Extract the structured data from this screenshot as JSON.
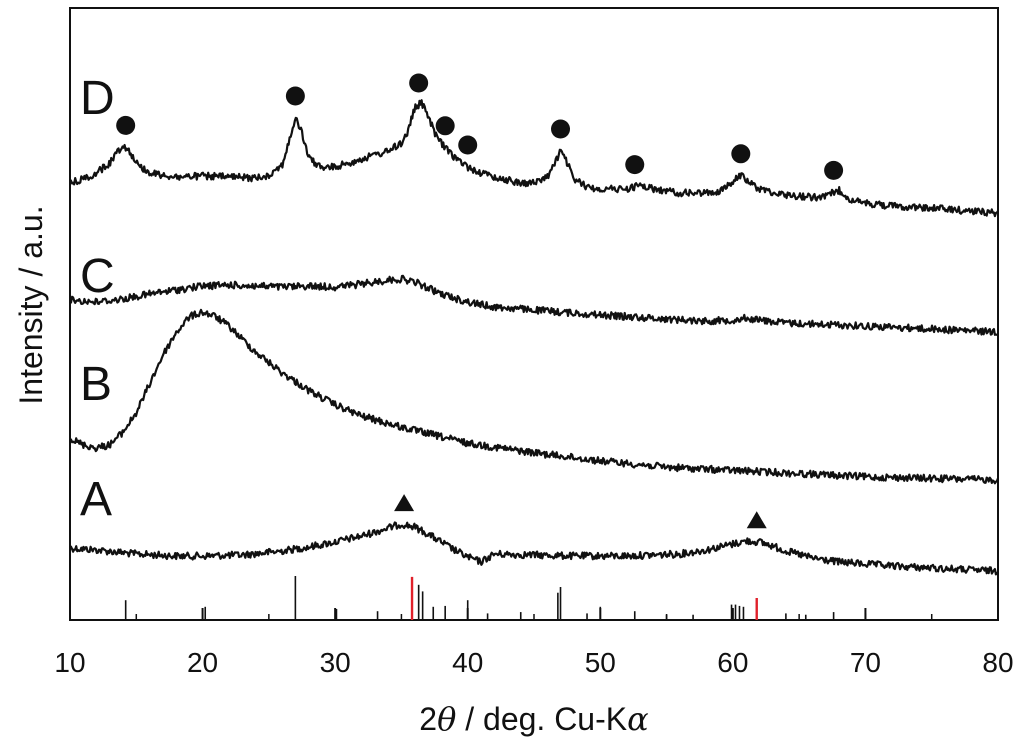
{
  "chart_data": {
    "type": "line",
    "title": "",
    "xlabel_prefix": "2",
    "xlabel_theta": "θ",
    "xlabel_mid": " / deg. Cu-K",
    "xlabel_alpha": "α",
    "ylabel": "Intensity / a.u.",
    "xlim": [
      10,
      80
    ],
    "xticks": [
      10,
      20,
      30,
      40,
      50,
      60,
      70,
      80
    ],
    "yticks_shown": false,
    "grid": false,
    "colors": {
      "trace": "#111111",
      "ref_black": "#111111",
      "ref_red": "#e0202a"
    },
    "series": [
      {
        "name": "A",
        "x": [
          10,
          12,
          15,
          18,
          20,
          23,
          26,
          28,
          30,
          32,
          34,
          35,
          36,
          37,
          38,
          39,
          40,
          41,
          42,
          45,
          48,
          52,
          56,
          58,
          60,
          61,
          62,
          63,
          64,
          66,
          68,
          70,
          72,
          75,
          78,
          80
        ],
        "y": [
          0.24,
          0.22,
          0.18,
          0.16,
          0.16,
          0.17,
          0.21,
          0.25,
          0.3,
          0.36,
          0.44,
          0.48,
          0.45,
          0.38,
          0.3,
          0.22,
          0.15,
          0.1,
          0.18,
          0.17,
          0.16,
          0.16,
          0.18,
          0.22,
          0.28,
          0.31,
          0.3,
          0.26,
          0.21,
          0.14,
          0.1,
          0.08,
          0.06,
          0.04,
          0.02,
          0.01
        ],
        "markers": [
          {
            "x": 35.2,
            "symbol": "triangle"
          },
          {
            "x": 61.8,
            "symbol": "triangle"
          }
        ]
      },
      {
        "name": "B",
        "x": [
          10,
          11,
          12,
          13,
          14,
          15,
          16,
          17,
          18,
          19,
          20,
          21,
          22,
          23,
          24,
          26,
          28,
          30,
          32,
          35,
          38,
          40,
          45,
          50,
          55,
          60,
          65,
          70,
          75,
          80
        ],
        "y": [
          0.26,
          0.22,
          0.2,
          0.22,
          0.3,
          0.42,
          0.6,
          0.78,
          0.92,
          1.02,
          1.05,
          1.02,
          0.96,
          0.88,
          0.8,
          0.67,
          0.56,
          0.47,
          0.4,
          0.33,
          0.27,
          0.23,
          0.17,
          0.12,
          0.08,
          0.06,
          0.04,
          0.02,
          0.01,
          0.0
        ]
      },
      {
        "name": "C",
        "x": [
          10,
          12,
          14,
          16,
          18,
          20,
          22,
          24,
          26,
          28,
          30,
          32,
          34,
          35,
          36,
          37,
          38,
          40,
          42,
          45,
          50,
          55,
          58,
          60,
          61,
          62,
          64,
          66,
          70,
          75,
          80
        ],
        "y": [
          0.32,
          0.3,
          0.33,
          0.38,
          0.42,
          0.46,
          0.47,
          0.46,
          0.45,
          0.46,
          0.45,
          0.48,
          0.52,
          0.53,
          0.5,
          0.44,
          0.38,
          0.3,
          0.25,
          0.22,
          0.17,
          0.13,
          0.11,
          0.12,
          0.14,
          0.12,
          0.09,
          0.08,
          0.06,
          0.03,
          0.0
        ]
      },
      {
        "name": "D",
        "x": [
          10,
          11,
          12,
          13,
          13.5,
          14,
          14.5,
          15,
          16,
          18,
          20,
          22,
          24,
          25,
          26,
          26.5,
          27,
          27.5,
          28,
          29,
          30,
          31,
          32,
          33,
          34,
          35,
          35.5,
          36,
          36.5,
          37,
          37.5,
          38,
          38.5,
          39,
          40,
          41,
          42,
          43,
          44,
          45,
          46,
          46.5,
          47,
          47.5,
          48,
          49,
          50,
          51,
          52,
          53,
          54,
          56,
          58,
          59,
          60,
          60.5,
          61,
          61.5,
          62,
          64,
          66,
          67,
          67.5,
          68,
          68.5,
          69,
          70,
          72,
          75,
          78,
          80
        ],
        "y": [
          0.3,
          0.34,
          0.4,
          0.5,
          0.6,
          0.68,
          0.62,
          0.5,
          0.4,
          0.36,
          0.37,
          0.36,
          0.35,
          0.38,
          0.48,
          0.7,
          0.95,
          0.8,
          0.55,
          0.45,
          0.46,
          0.5,
          0.54,
          0.58,
          0.62,
          0.7,
          0.82,
          1.05,
          1.1,
          0.98,
          0.8,
          0.7,
          0.62,
          0.56,
          0.46,
          0.4,
          0.36,
          0.33,
          0.3,
          0.3,
          0.36,
          0.48,
          0.62,
          0.5,
          0.34,
          0.26,
          0.24,
          0.24,
          0.24,
          0.28,
          0.24,
          0.2,
          0.2,
          0.22,
          0.3,
          0.38,
          0.34,
          0.28,
          0.24,
          0.18,
          0.16,
          0.16,
          0.2,
          0.23,
          0.18,
          0.12,
          0.1,
          0.07,
          0.05,
          0.02,
          0.0
        ],
        "markers": [
          {
            "x": 14.2,
            "symbol": "circle"
          },
          {
            "x": 27.0,
            "symbol": "circle"
          },
          {
            "x": 36.3,
            "symbol": "circle"
          },
          {
            "x": 38.3,
            "symbol": "circle"
          },
          {
            "x": 40.0,
            "symbol": "circle"
          },
          {
            "x": 47.0,
            "symbol": "circle"
          },
          {
            "x": 52.6,
            "symbol": "circle"
          },
          {
            "x": 60.6,
            "symbol": "circle"
          },
          {
            "x": 67.6,
            "symbol": "circle"
          }
        ]
      }
    ],
    "reference_lines": [
      {
        "x": 14.2,
        "h": 0.45,
        "color": "black"
      },
      {
        "x": 20.2,
        "h": 0.3,
        "color": "black"
      },
      {
        "x": 27.0,
        "h": 1.0,
        "color": "black"
      },
      {
        "x": 30.1,
        "h": 0.25,
        "color": "black"
      },
      {
        "x": 33.2,
        "h": 0.2,
        "color": "black"
      },
      {
        "x": 35.8,
        "h": 0.98,
        "color": "red"
      },
      {
        "x": 36.3,
        "h": 0.8,
        "color": "black"
      },
      {
        "x": 36.6,
        "h": 0.65,
        "color": "black"
      },
      {
        "x": 37.4,
        "h": 0.3,
        "color": "black"
      },
      {
        "x": 38.3,
        "h": 0.32,
        "color": "black"
      },
      {
        "x": 40.0,
        "h": 0.45,
        "color": "black"
      },
      {
        "x": 41.5,
        "h": 0.15,
        "color": "black"
      },
      {
        "x": 44.0,
        "h": 0.18,
        "color": "black"
      },
      {
        "x": 46.8,
        "h": 0.62,
        "color": "black"
      },
      {
        "x": 47.0,
        "h": 0.75,
        "color": "black"
      },
      {
        "x": 49.0,
        "h": 0.15,
        "color": "black"
      },
      {
        "x": 50.0,
        "h": 0.3,
        "color": "black"
      },
      {
        "x": 52.6,
        "h": 0.2,
        "color": "black"
      },
      {
        "x": 55.0,
        "h": 0.12,
        "color": "black"
      },
      {
        "x": 57.0,
        "h": 0.12,
        "color": "black"
      },
      {
        "x": 59.9,
        "h": 0.35,
        "color": "black"
      },
      {
        "x": 60.2,
        "h": 0.35,
        "color": "black"
      },
      {
        "x": 60.5,
        "h": 0.32,
        "color": "black"
      },
      {
        "x": 60.8,
        "h": 0.3,
        "color": "black"
      },
      {
        "x": 61.8,
        "h": 0.5,
        "color": "red"
      },
      {
        "x": 64.0,
        "h": 0.15,
        "color": "black"
      },
      {
        "x": 65.5,
        "h": 0.12,
        "color": "black"
      },
      {
        "x": 67.6,
        "h": 0.18,
        "color": "black"
      },
      {
        "x": 70.0,
        "h": 0.15,
        "color": "black"
      }
    ]
  }
}
